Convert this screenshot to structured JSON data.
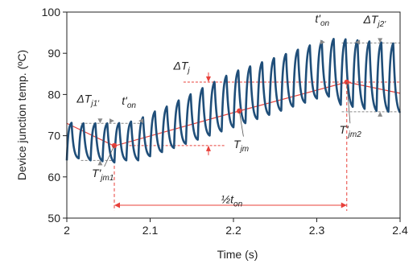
{
  "chart_data": {
    "type": "line",
    "title": "",
    "xlabel": "Time (s)",
    "ylabel": "Device junction temp. (ºC)",
    "xlim": [
      2.0,
      2.4
    ],
    "ylim": [
      50,
      100
    ],
    "x_ticks": [
      "2",
      "2.1",
      "2.2",
      "2.3",
      "2.4"
    ],
    "y_ticks": [
      "50",
      "60",
      "70",
      "80",
      "90",
      "100"
    ],
    "grid": false,
    "legend": "none",
    "series": [
      {
        "name": "",
        "style": "oscillating",
        "color": "#1f4e79",
        "period": 0.0143,
        "x": [
          2.0,
          2.0143,
          2.0286,
          2.0429,
          2.0571,
          2.0714,
          2.0857,
          2.1,
          2.1143,
          2.1286,
          2.1429,
          2.1571,
          2.1714,
          2.1857,
          2.2,
          2.2143,
          2.2286,
          2.2429,
          2.2571,
          2.2714,
          2.2857,
          2.3,
          2.3143,
          2.3286,
          2.3429,
          2.3571,
          2.3714,
          2.3857,
          2.4
        ],
        "mean": [
          73.0,
          71.5,
          70.0,
          68.5,
          67.5,
          68.5,
          69.5,
          70.3,
          71.2,
          72.0,
          72.8,
          73.7,
          74.5,
          75.3,
          76.2,
          77.0,
          77.8,
          78.7,
          79.5,
          80.3,
          81.2,
          82.0,
          82.9,
          82.2,
          81.7,
          81.3,
          80.9,
          80.5,
          80.1
        ],
        "peak": [
          73.2,
          73.0,
          73.0,
          73.0,
          73.0,
          73.2,
          73.8,
          75.5,
          76.5,
          78.0,
          79.5,
          81.0,
          82.5,
          84.0,
          85.5,
          86.5,
          87.5,
          88.5,
          89.5,
          90.5,
          91.5,
          92.5,
          93.5,
          93.5,
          93.3,
          93.0,
          92.8,
          92.5,
          92.3
        ],
        "valley": [
          64.0,
          64.5,
          64.0,
          63.8,
          63.5,
          64.0,
          64.0,
          65.0,
          66.0,
          67.0,
          68.0,
          69.0,
          70.0,
          71.0,
          72.0,
          73.0,
          74.0,
          75.0,
          76.0,
          77.0,
          78.0,
          79.0,
          79.5,
          77.5,
          77.0,
          76.5,
          76.0,
          75.8,
          75.5
        ]
      },
      {
        "name": "",
        "style": "mean-line",
        "color": "#e8403a",
        "x": [
          2.0,
          2.057,
          2.207,
          2.336,
          2.4
        ],
        "y": [
          73.0,
          67.5,
          76.0,
          83.0,
          80.3
        ]
      }
    ],
    "markers": [
      {
        "x": 2.057,
        "y": 67.6
      },
      {
        "x": 2.207,
        "y": 76.0
      },
      {
        "x": 2.336,
        "y": 83.0
      }
    ],
    "reference_lines": [
      {
        "y": 73.0,
        "x_from": 2.017,
        "x_to": 2.093,
        "color": "#888888"
      },
      {
        "y": 64.0,
        "x_from": 2.017,
        "x_to": 2.06,
        "color": "#888888"
      },
      {
        "y": 67.6,
        "x_from": 2.075,
        "x_to": 2.19,
        "color": "#e8403a"
      },
      {
        "y": 83.0,
        "x_from": 2.14,
        "x_to": 2.4,
        "color": "#e8403a"
      },
      {
        "y": 92.5,
        "x_from": 2.33,
        "x_to": 2.4,
        "color": "#888888"
      },
      {
        "y": 75.8,
        "x_from": 2.33,
        "x_to": 2.4,
        "color": "#888888"
      }
    ],
    "annotations": [
      {
        "text": "ΔT_j1'",
        "x": 2.012,
        "y": 78.0
      },
      {
        "text": "t'_on",
        "x": 2.066,
        "y": 77.5
      },
      {
        "text": "T'_jm1",
        "x": 2.03,
        "y": 60.0
      },
      {
        "text": "ΔT_j",
        "x": 2.128,
        "y": 86.0
      },
      {
        "text": "T_jm",
        "x": 2.2,
        "y": 67.0
      },
      {
        "text": "½t_on",
        "x": 2.185,
        "y": 53.6
      },
      {
        "text": "t'_on",
        "x": 2.298,
        "y": 97.5
      },
      {
        "text": "ΔT_j2'",
        "x": 2.356,
        "y": 97.3
      },
      {
        "text": "T'_jm2",
        "x": 2.327,
        "y": 70.5
      }
    ]
  }
}
